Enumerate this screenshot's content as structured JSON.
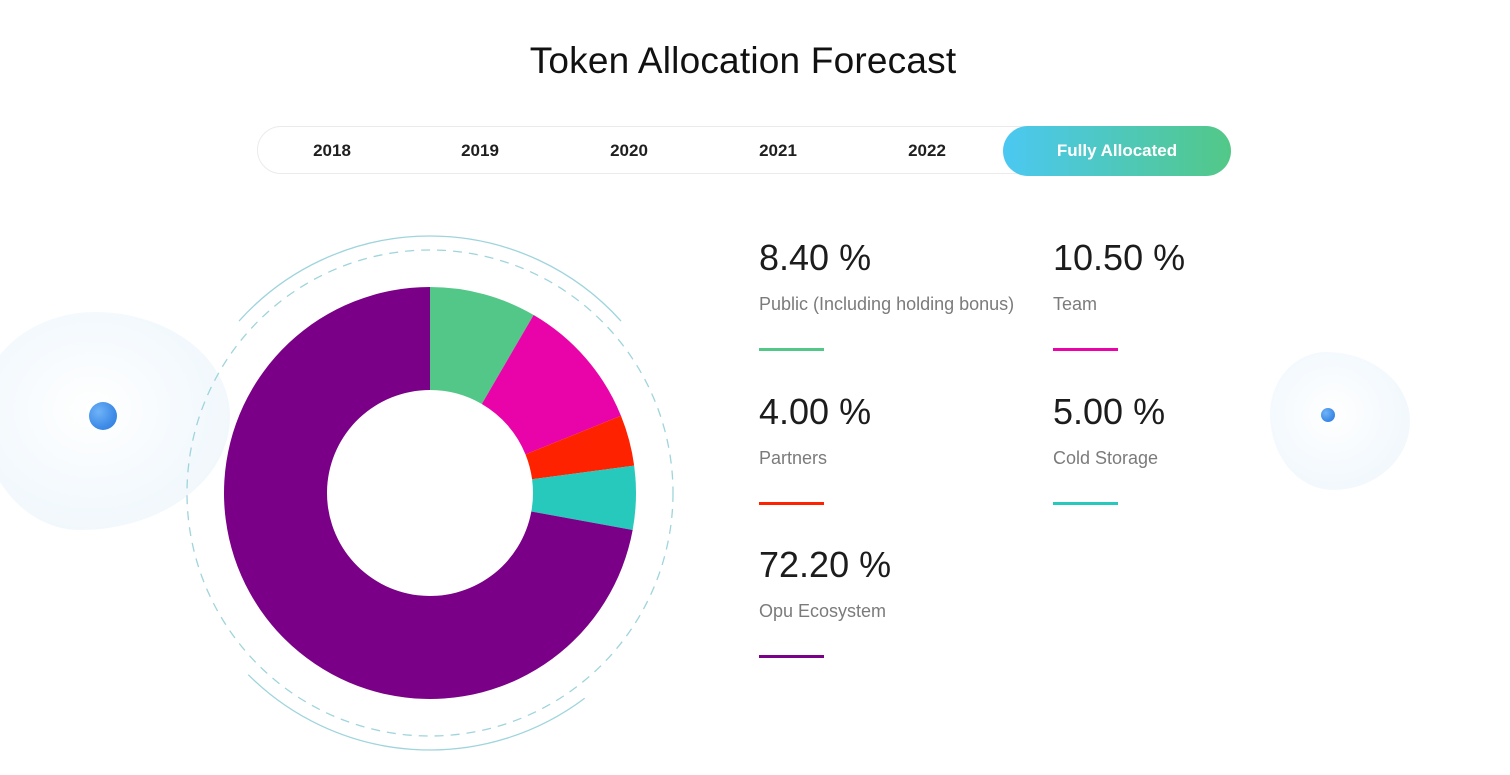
{
  "header": {
    "title": "Token Allocation Forecast"
  },
  "tabs": [
    {
      "label": "2018",
      "active": false
    },
    {
      "label": "2019",
      "active": false
    },
    {
      "label": "2020",
      "active": false
    },
    {
      "label": "2021",
      "active": false
    },
    {
      "label": "2022",
      "active": false
    },
    {
      "label": "Fully Allocated",
      "active": true
    }
  ],
  "chart_data": {
    "type": "pie",
    "variant": "donut",
    "title": "Token Allocation Forecast",
    "slices": [
      {
        "label": "Public (Including holding bonus)",
        "value": 8.4,
        "display": "8.40 %",
        "color": "#52c787"
      },
      {
        "label": "Team",
        "value": 10.5,
        "display": "10.50 %",
        "color": "#e804a9"
      },
      {
        "label": "Partners",
        "value": 4.0,
        "display": "4.00 %",
        "color": "#ff2200"
      },
      {
        "label": "Cold Storage",
        "value": 5.0,
        "display": "5.00 %",
        "color": "#26c9bc"
      },
      {
        "label": "Opu Ecosystem",
        "value": 72.2,
        "display": "72.20 %",
        "color": "#7a0087"
      }
    ],
    "legend_placement": "right"
  },
  "decor": {
    "ring_color": "#9fd4dc",
    "dot_color": "#3f8ce8"
  }
}
